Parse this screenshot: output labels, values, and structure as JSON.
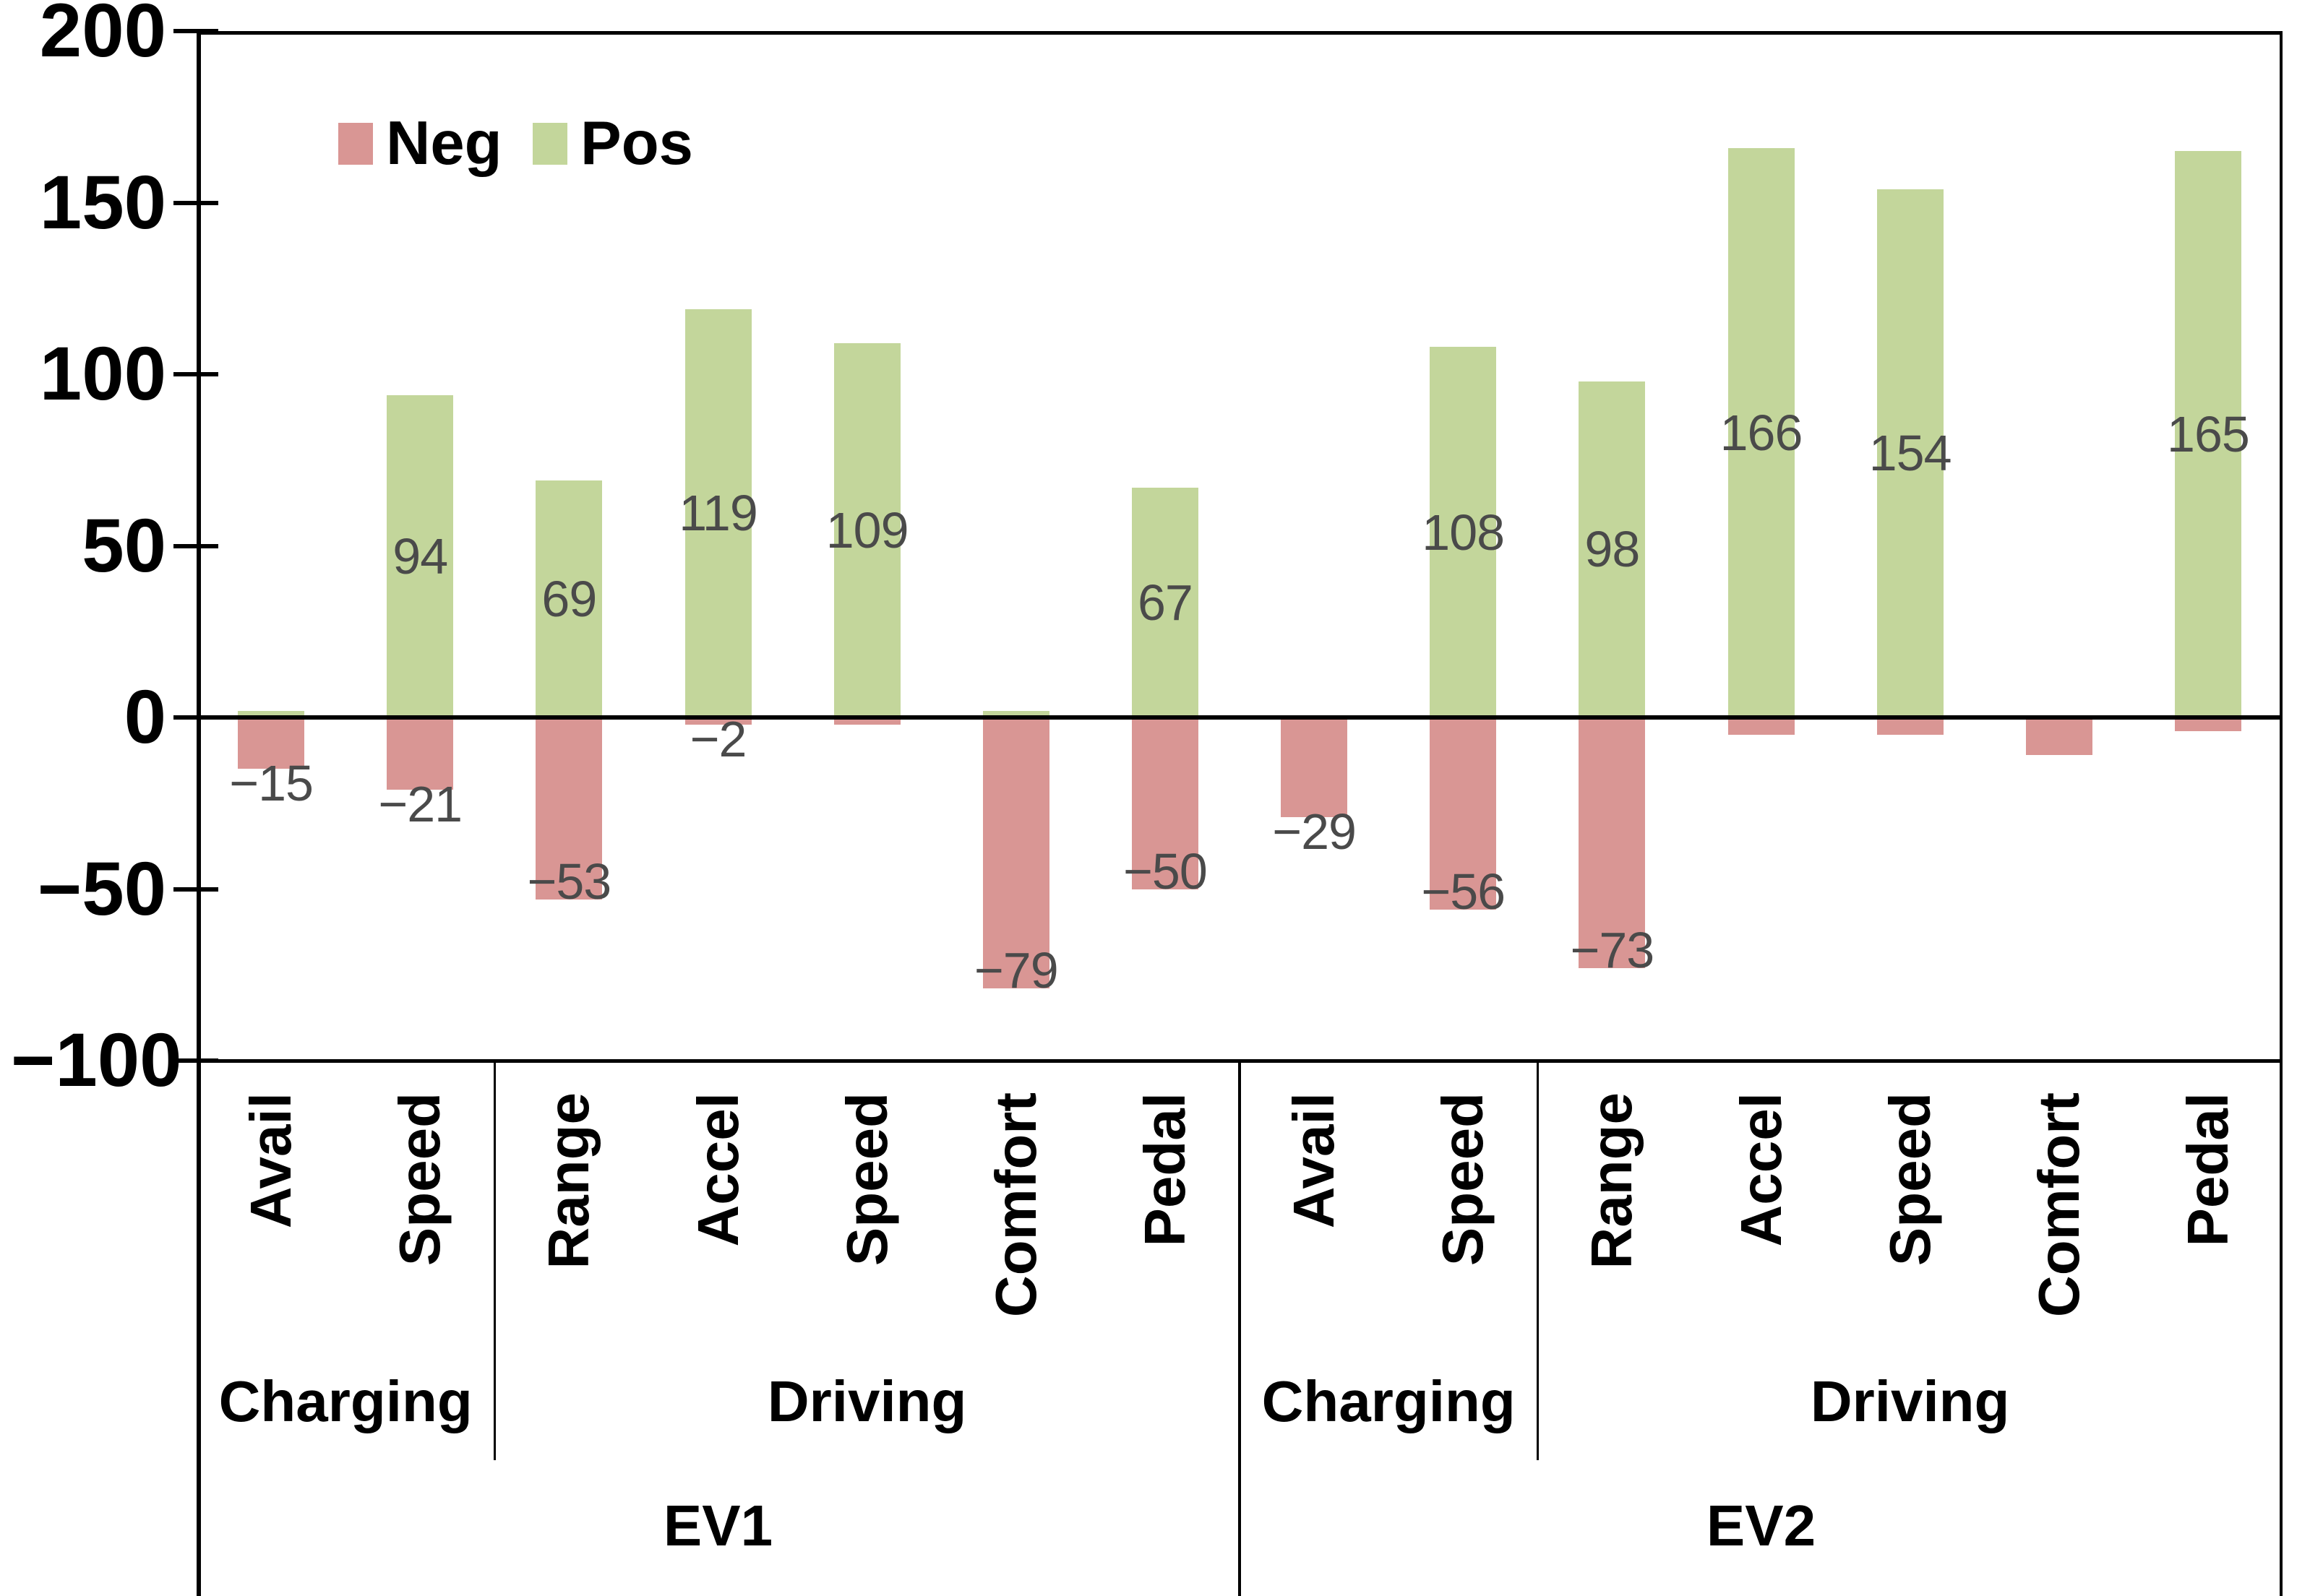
{
  "chart_data": {
    "type": "bar",
    "title": "",
    "xlabel": "",
    "ylabel": "",
    "ylim": [
      -100,
      200
    ],
    "yticks": [
      200,
      150,
      100,
      50,
      0,
      -50,
      -100
    ],
    "ytick_labels": [
      "200",
      "150",
      "100",
      "50",
      "0",
      "−50",
      "−100"
    ],
    "grid": false,
    "legend": {
      "position": "top-left-inside",
      "entries": [
        {
          "label": "Neg",
          "color": "#d99694"
        },
        {
          "label": "Pos",
          "color": "#c3d69b"
        }
      ]
    },
    "series_colors": {
      "neg": "#d99694",
      "pos": "#c3d69b"
    },
    "groups": [
      {
        "label": "EV1",
        "subgroups": [
          {
            "label": "Charging",
            "categories": [
              "Avail",
              "Speed"
            ]
          },
          {
            "label": "Driving",
            "categories": [
              "Range",
              "Accel",
              "Speed",
              "Comfort",
              "Pedal"
            ]
          }
        ]
      },
      {
        "label": "EV2",
        "subgroups": [
          {
            "label": "Charging",
            "categories": [
              "Avail",
              "Speed"
            ]
          },
          {
            "label": "Driving",
            "categories": [
              "Range",
              "Accel",
              "Speed",
              "Comfort",
              "Pedal"
            ]
          }
        ]
      }
    ],
    "points": [
      {
        "ev": "EV1",
        "subgroup": "Charging",
        "category": "Avail",
        "pos": 2,
        "neg": -15,
        "pos_label": "",
        "neg_label": "−15"
      },
      {
        "ev": "EV1",
        "subgroup": "Charging",
        "category": "Speed",
        "pos": 94,
        "neg": -21,
        "pos_label": "94",
        "neg_label": "−21"
      },
      {
        "ev": "EV1",
        "subgroup": "Driving",
        "category": "Range",
        "pos": 69,
        "neg": -53,
        "pos_label": "69",
        "neg_label": "−53"
      },
      {
        "ev": "EV1",
        "subgroup": "Driving",
        "category": "Accel",
        "pos": 119,
        "neg": -2,
        "pos_label": "119",
        "neg_label": "−2"
      },
      {
        "ev": "EV1",
        "subgroup": "Driving",
        "category": "Speed",
        "pos": 109,
        "neg": -2,
        "pos_label": "109",
        "neg_label": ""
      },
      {
        "ev": "EV1",
        "subgroup": "Driving",
        "category": "Comfort",
        "pos": 2,
        "neg": -79,
        "pos_label": "",
        "neg_label": "−79"
      },
      {
        "ev": "EV1",
        "subgroup": "Driving",
        "category": "Pedal",
        "pos": 67,
        "neg": -50,
        "pos_label": "67",
        "neg_label": "−50"
      },
      {
        "ev": "EV2",
        "subgroup": "Charging",
        "category": "Avail",
        "pos": 0,
        "neg": -29,
        "pos_label": "",
        "neg_label": "−29"
      },
      {
        "ev": "EV2",
        "subgroup": "Charging",
        "category": "Speed",
        "pos": 108,
        "neg": -56,
        "pos_label": "108",
        "neg_label": "−56"
      },
      {
        "ev": "EV2",
        "subgroup": "Driving",
        "category": "Range",
        "pos": 98,
        "neg": -73,
        "pos_label": "98",
        "neg_label": "−73"
      },
      {
        "ev": "EV2",
        "subgroup": "Driving",
        "category": "Accel",
        "pos": 166,
        "neg": -5,
        "pos_label": "166",
        "neg_label": ""
      },
      {
        "ev": "EV2",
        "subgroup": "Driving",
        "category": "Speed",
        "pos": 154,
        "neg": -5,
        "pos_label": "154",
        "neg_label": ""
      },
      {
        "ev": "EV2",
        "subgroup": "Driving",
        "category": "Comfort",
        "pos": 0,
        "neg": -11,
        "pos_label": "",
        "neg_label": ""
      },
      {
        "ev": "EV2",
        "subgroup": "Driving",
        "category": "Pedal",
        "pos": 165,
        "neg": -4,
        "pos_label": "165",
        "neg_label": ""
      }
    ]
  }
}
